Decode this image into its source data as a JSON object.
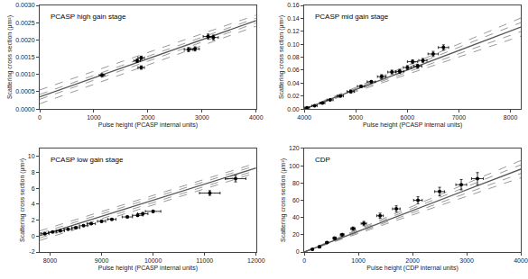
{
  "chart_data": [
    {
      "type": "scatter",
      "title": "PCASP high gain stage",
      "xlabel": "Pulse height (PCASP internal units)",
      "ylabel": "Scattering cross section (μm²)",
      "xlim": [
        0,
        4000
      ],
      "ylim": [
        0,
        0.003
      ],
      "xticks": [
        0,
        1000,
        2000,
        3000,
        4000
      ],
      "yticks": [
        {
          "value": 0,
          "label": "0.0000"
        },
        0.0005,
        {
          "value": 0.001,
          "label": "0.0010"
        },
        0.0015,
        {
          "value": 0.002,
          "label": "0.0020"
        },
        0.0025,
        {
          "value": 0.003,
          "label": "0.0030"
        }
      ],
      "grid": false,
      "series": [
        {
          "type": "line",
          "color": "#999999",
          "line_style": "dashed",
          "x": [
            0,
            4000
          ],
          "values": [
            0.00055,
            0.00272
          ]
        },
        {
          "type": "line",
          "color": "#999999",
          "line_style": "dashed",
          "x": [
            0,
            4000
          ],
          "values": [
            0.00042,
            0.00263
          ]
        },
        {
          "type": "line",
          "color": "#999999",
          "line_style": "dashed",
          "x": [
            0,
            4000
          ],
          "values": [
            0.00028,
            0.00249
          ]
        },
        {
          "type": "line",
          "color": "#999999",
          "line_style": "dashed",
          "x": [
            0,
            4000
          ],
          "values": [
            0.00015,
            0.0024
          ]
        },
        {
          "type": "line",
          "color": "#555555",
          "line_style": "solid",
          "x": [
            0,
            4000
          ],
          "values": [
            0.00035,
            0.00256
          ]
        },
        {
          "type": "scatter",
          "color": "black",
          "marker": "circle",
          "x": [
            1150,
            1800,
            1875,
            1875,
            2750,
            2870,
            3110,
            3210
          ],
          "values": [
            0.00098,
            0.0014,
            0.00148,
            0.0012,
            0.00172,
            0.00174,
            0.0021,
            0.00207
          ],
          "x_error": [
            50,
            60,
            60,
            60,
            80,
            80,
            90,
            90
          ],
          "y_error": [
            4e-05,
            5e-05,
            5e-05,
            5e-05,
            6e-05,
            6e-05,
            7e-05,
            7e-05
          ]
        }
      ]
    },
    {
      "type": "scatter",
      "title": "PCASP mid gain stage",
      "xlabel": "Pulse height (PCASP internal units)",
      "ylabel": "Scattering cross section (μm²)",
      "xlim": [
        4000,
        8200
      ],
      "ylim": [
        0,
        0.16
      ],
      "xticks": [
        4000,
        5000,
        6000,
        7000,
        8000
      ],
      "yticks": [
        {
          "value": 0,
          "label": "0.00"
        },
        0.02,
        0.04,
        0.06,
        0.08,
        {
          "value": 0.1,
          "label": "0.10"
        },
        0.12,
        0.14,
        0.16
      ],
      "grid": false,
      "series": [
        {
          "type": "line",
          "color": "#999999",
          "line_style": "dashed",
          "x": [
            4000,
            8200
          ],
          "values": [
            0.0,
            0.1405
          ]
        },
        {
          "type": "line",
          "color": "#999999",
          "line_style": "dashed",
          "x": [
            4000,
            8200
          ],
          "values": [
            0.0,
            0.1335
          ]
        },
        {
          "type": "line",
          "color": "#999999",
          "line_style": "dashed",
          "x": [
            4000,
            8200
          ],
          "values": [
            0.0,
            0.1195
          ]
        },
        {
          "type": "line",
          "color": "#999999",
          "line_style": "dashed",
          "x": [
            4000,
            8200
          ],
          "values": [
            0.0,
            0.1125
          ]
        },
        {
          "type": "line",
          "color": "#555555",
          "line_style": "solid",
          "x": [
            4000,
            8200
          ],
          "values": [
            0.0,
            0.1265
          ]
        },
        {
          "type": "scatter",
          "color": "black",
          "marker": "circle",
          "x": [
            4050,
            4200,
            4350,
            4500,
            4700,
            4900,
            5100,
            5300,
            5500,
            5700,
            5850,
            6000,
            6100,
            6200,
            6300,
            6500,
            6700
          ],
          "values": [
            0.002,
            0.005,
            0.009,
            0.014,
            0.02,
            0.027,
            0.035,
            0.042,
            0.05,
            0.057,
            0.058,
            0.064,
            0.073,
            0.066,
            0.075,
            0.085,
            0.095
          ],
          "x_error": [
            50,
            50,
            50,
            60,
            60,
            70,
            70,
            80,
            80,
            80,
            80,
            80,
            100,
            80,
            80,
            100,
            100
          ],
          "y_error": [
            0.0005,
            0.001,
            0.001,
            0.001,
            0.001,
            0.002,
            0.002,
            0.002,
            0.003,
            0.003,
            0.003,
            0.003,
            0.003,
            0.003,
            0.003,
            0.004,
            0.004
          ]
        }
      ]
    },
    {
      "type": "scatter",
      "title": "PCASP low gain stage",
      "xlabel": "Pulse height (PCASP internal units)",
      "ylabel": "Scattering cross section (μm²)",
      "xlim": [
        7800,
        12000
      ],
      "ylim": [
        -2,
        11
      ],
      "xticks": [
        8000,
        9000,
        10000,
        11000,
        12000
      ],
      "yticks": [
        -2,
        0,
        2,
        4,
        6,
        8,
        10
      ],
      "grid": false,
      "series": [
        {
          "type": "line",
          "color": "#999999",
          "line_style": "dashed",
          "x": [
            7800,
            12000
          ],
          "values": [
            0.65,
            9.15
          ]
        },
        {
          "type": "line",
          "color": "#999999",
          "line_style": "dashed",
          "x": [
            7800,
            12000
          ],
          "values": [
            0.35,
            8.85
          ]
        },
        {
          "type": "line",
          "color": "#999999",
          "line_style": "dashed",
          "x": [
            7800,
            12000
          ],
          "values": [
            -0.25,
            8.25
          ]
        },
        {
          "type": "line",
          "color": "#999999",
          "line_style": "dashed",
          "x": [
            7800,
            12000
          ],
          "values": [
            -0.55,
            7.95
          ]
        },
        {
          "type": "line",
          "color": "#555555",
          "line_style": "solid",
          "x": [
            7800,
            12000
          ],
          "values": [
            0.05,
            8.55
          ]
        },
        {
          "type": "scatter",
          "color": "black",
          "marker": "circle",
          "x": [
            7900,
            8050,
            8200,
            8350,
            8500,
            8650,
            8800,
            9000,
            9200,
            9500,
            9700,
            9800,
            10000,
            11100,
            11600
          ],
          "values": [
            0.3,
            0.5,
            0.65,
            0.85,
            1.05,
            1.3,
            1.55,
            1.85,
            2.1,
            2.4,
            2.6,
            2.8,
            3.1,
            5.4,
            7.2
          ],
          "x_error": [
            80,
            80,
            80,
            80,
            80,
            80,
            80,
            80,
            80,
            100,
            100,
            100,
            150,
            200,
            200
          ],
          "y_error": [
            0.05,
            0.05,
            0.05,
            0.05,
            0.05,
            0.08,
            0.08,
            0.1,
            0.1,
            0.1,
            0.15,
            0.15,
            0.15,
            0.3,
            0.4
          ]
        }
      ]
    },
    {
      "type": "scatter",
      "title": "CDP",
      "xlabel": "Pulse height (CDP internal units)",
      "ylabel": "Scattering cross section (μm²)",
      "xlim": [
        0,
        4000
      ],
      "ylim": [
        0,
        120
      ],
      "xticks": [
        0,
        1000,
        2000,
        3000,
        4000
      ],
      "yticks": [
        0,
        20,
        40,
        60,
        80,
        100,
        120
      ],
      "grid": false,
      "series": [
        {
          "type": "line",
          "color": "#999999",
          "line_style": "dashed",
          "x": [
            0,
            4000
          ],
          "values": [
            0,
            106
          ]
        },
        {
          "type": "line",
          "color": "#999999",
          "line_style": "dashed",
          "x": [
            0,
            4000
          ],
          "values": [
            0,
            101
          ]
        },
        {
          "type": "line",
          "color": "#999999",
          "line_style": "dashed",
          "x": [
            0,
            4000
          ],
          "values": [
            0,
            91
          ]
        },
        {
          "type": "line",
          "color": "#999999",
          "line_style": "dashed",
          "x": [
            0,
            4000
          ],
          "values": [
            0,
            86
          ]
        },
        {
          "type": "line",
          "color": "#555555",
          "line_style": "solid",
          "x": [
            0,
            4000
          ],
          "values": [
            0,
            96
          ]
        },
        {
          "type": "scatter",
          "color": "black",
          "marker": "circle",
          "x": [
            150,
            280,
            420,
            560,
            700,
            900,
            1100,
            1400,
            1700,
            2100,
            2500,
            2900,
            3200
          ],
          "values": [
            3,
            6,
            11,
            16,
            20,
            27,
            33,
            42,
            50,
            60,
            70,
            78,
            85
          ],
          "x_error": [
            15,
            20,
            25,
            30,
            35,
            40,
            50,
            60,
            70,
            80,
            90,
            100,
            110
          ],
          "y_error": [
            0.5,
            1,
            1,
            1.5,
            1.5,
            2,
            2.5,
            3,
            3.5,
            4,
            5,
            6,
            7
          ]
        }
      ]
    }
  ]
}
